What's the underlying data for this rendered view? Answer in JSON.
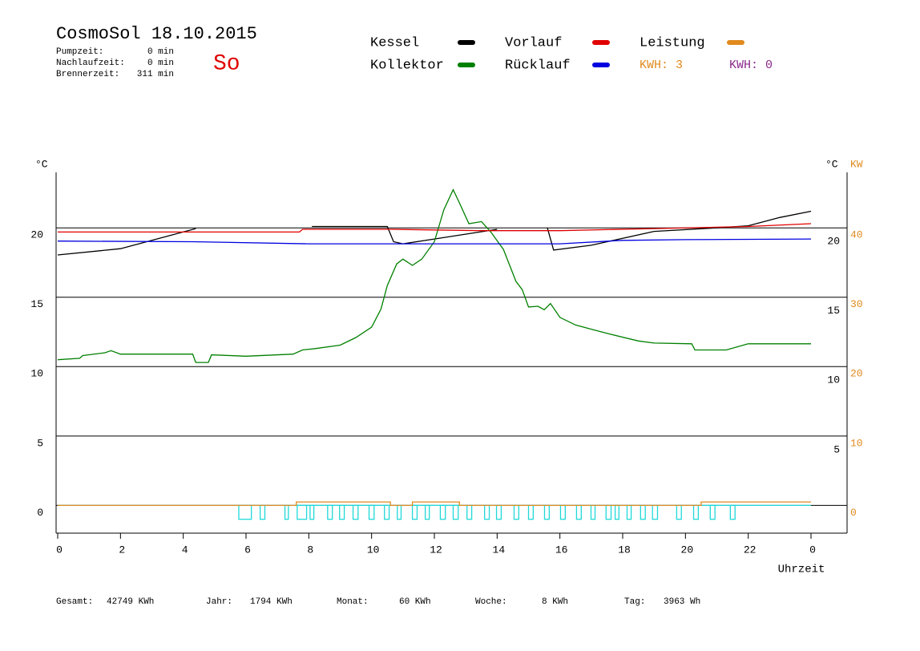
{
  "chart_data": {
    "type": "line",
    "title": "CosmoSol 18.10.2015",
    "day": "So",
    "info": [
      {
        "label": "Pumpzeit:",
        "value": "0 min"
      },
      {
        "label": "Nachlaufzeit:",
        "value": "0 min"
      },
      {
        "label": "Brennerzeit:",
        "value": "311 min"
      }
    ],
    "legend_extra": [
      {
        "label": "KWH: 3",
        "color": "#e08a1e"
      },
      {
        "label": "KWH: 0",
        "color": "#8b2a8b"
      }
    ],
    "xlabel": "Uhrzeit",
    "ylabel": "°C",
    "ylabel_right": "°C",
    "y2label": "KW",
    "xlim": [
      0,
      24
    ],
    "xticks": [
      0,
      2,
      4,
      6,
      8,
      10,
      12,
      14,
      16,
      18,
      20,
      22,
      {
        "value": 24,
        "label": "0"
      }
    ],
    "ylim": [
      -2,
      24
    ],
    "yticks": [
      0,
      5,
      10,
      15,
      20
    ],
    "yticks_right": [
      5,
      10,
      15,
      20
    ],
    "y2lim": [
      -4,
      48
    ],
    "y2ticks": [
      0,
      10,
      20,
      30,
      40
    ],
    "grid": true,
    "series": [
      {
        "name": "Kessel",
        "color": "#000000",
        "x": [
          0,
          2,
          4.4,
          4.5,
          8.1,
          10.5,
          10.7,
          11,
          12,
          14,
          14.1,
          15.6,
          15.8,
          17,
          19,
          21,
          22,
          23,
          24
        ],
        "values": [
          18.05,
          18.5,
          19.95,
          null,
          20.1,
          20.1,
          19.0,
          18.85,
          19.2,
          19.9,
          null,
          20.0,
          18.4,
          18.75,
          19.75,
          20.0,
          20.15,
          20.75,
          21.2
        ]
      },
      {
        "name": "Kollektor",
        "color": "#008000",
        "x": [
          0,
          0.7,
          0.8,
          1.5,
          1.7,
          2,
          4.3,
          4.4,
          4.8,
          4.9,
          6,
          7.5,
          7.8,
          8.2,
          9,
          9.5,
          10,
          10.3,
          10.5,
          10.8,
          11,
          11.3,
          11.6,
          12,
          12.3,
          12.6,
          12.8,
          13.1,
          13.5,
          13.8,
          14.2,
          14.6,
          14.8,
          15,
          15.3,
          15.5,
          15.7,
          16,
          16.5,
          17,
          17.5,
          18.5,
          19,
          20.2,
          20.3,
          21.3,
          22,
          24
        ],
        "values": [
          10.5,
          10.6,
          10.8,
          11.0,
          11.15,
          10.9,
          10.9,
          10.3,
          10.3,
          10.85,
          10.75,
          10.9,
          11.2,
          11.3,
          11.55,
          12.1,
          12.85,
          14.15,
          15.85,
          17.4,
          17.75,
          17.3,
          17.75,
          19.0,
          21.3,
          22.75,
          21.8,
          20.3,
          20.45,
          19.7,
          18.45,
          16.15,
          15.55,
          14.3,
          14.35,
          14.1,
          14.55,
          13.55,
          13.0,
          12.7,
          12.4,
          11.85,
          11.7,
          11.65,
          11.2,
          11.2,
          11.65,
          11.65
        ]
      },
      {
        "name": "Vorlauf",
        "color": "#e00000",
        "x": [
          0,
          7.7,
          7.8,
          10.6,
          13.5,
          16,
          19,
          22,
          24
        ],
        "values": [
          19.7,
          19.7,
          19.9,
          19.9,
          19.8,
          19.8,
          19.95,
          20.1,
          20.3
        ]
      },
      {
        "name": "Rücklauf",
        "color": "#0000e0",
        "x": [
          0,
          4.3,
          8,
          12,
          16,
          18,
          20,
          24
        ],
        "values": [
          19.05,
          19.0,
          18.85,
          18.85,
          18.85,
          19.1,
          19.15,
          19.2
        ]
      },
      {
        "name": "Leistung",
        "color": "#e08a1e",
        "axis": "y2",
        "x": [
          0,
          7.6,
          7.6,
          10.6,
          10.6,
          11.3,
          11.3,
          12.8,
          12.8,
          20.5,
          20.5,
          24
        ],
        "values": [
          0,
          0,
          0.5,
          0.5,
          0,
          0,
          0.5,
          0.5,
          0,
          0,
          0.5,
          0.5
        ]
      }
    ],
    "pump": {
      "color": "#20d8d8",
      "level": -1,
      "pulses": [
        [
          5.77,
          6.17
        ],
        [
          6.45,
          6.6
        ],
        [
          7.24,
          7.35
        ],
        [
          7.63,
          7.93
        ],
        [
          8.04,
          8.16
        ],
        [
          8.6,
          8.75
        ],
        [
          8.98,
          9.13
        ],
        [
          9.41,
          9.57
        ],
        [
          9.92,
          10.08
        ],
        [
          10.41,
          10.56
        ],
        [
          10.82,
          10.94
        ],
        [
          11.3,
          11.45
        ],
        [
          11.71,
          11.84
        ],
        [
          12.19,
          12.35
        ],
        [
          12.6,
          12.76
        ],
        [
          13.04,
          13.19
        ],
        [
          13.6,
          13.75
        ],
        [
          13.98,
          14.13
        ],
        [
          14.54,
          14.69
        ],
        [
          15.0,
          15.15
        ],
        [
          15.51,
          15.66
        ],
        [
          16.02,
          16.17
        ],
        [
          16.53,
          16.68
        ],
        [
          16.99,
          17.12
        ],
        [
          17.47,
          17.63
        ],
        [
          17.76,
          17.88
        ],
        [
          18.14,
          18.27
        ],
        [
          18.57,
          18.72
        ],
        [
          18.95,
          19.11
        ],
        [
          19.72,
          19.87
        ],
        [
          20.26,
          20.41
        ],
        [
          20.79,
          20.94
        ],
        [
          21.43,
          21.58
        ]
      ]
    },
    "footer": [
      {
        "label": "Gesamt:",
        "value": "42749 KWh"
      },
      {
        "label": "Jahr:",
        "value": "1794 KWh"
      },
      {
        "label": "Monat:",
        "value": "60 KWh"
      },
      {
        "label": "Woche:",
        "value": "8 KWh"
      },
      {
        "label": "Tag:",
        "value": "3963 Wh"
      }
    ]
  }
}
